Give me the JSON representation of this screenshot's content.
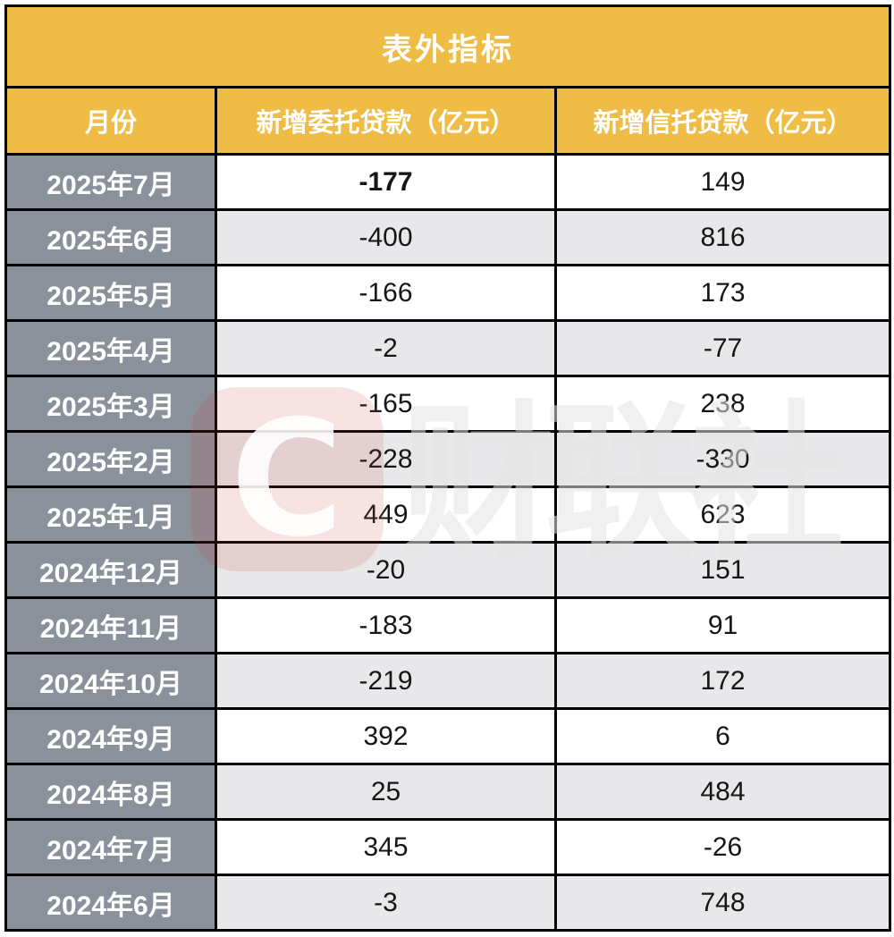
{
  "table": {
    "title": "表外指标",
    "columns": [
      "月份",
      "新增委托贷款（亿元）",
      "新增信托贷款（亿元）"
    ],
    "rows": [
      {
        "month": "2025年7月",
        "entrusted": "-177",
        "trust": "149",
        "bold": true
      },
      {
        "month": "2025年6月",
        "entrusted": "-400",
        "trust": "816",
        "bold": false
      },
      {
        "month": "2025年5月",
        "entrusted": "-166",
        "trust": "173",
        "bold": false
      },
      {
        "month": "2025年4月",
        "entrusted": "-2",
        "trust": "-77",
        "bold": false
      },
      {
        "month": "2025年3月",
        "entrusted": "-165",
        "trust": "238",
        "bold": false
      },
      {
        "month": "2025年2月",
        "entrusted": "-228",
        "trust": "-330",
        "bold": false
      },
      {
        "month": "2025年1月",
        "entrusted": "449",
        "trust": "623",
        "bold": false
      },
      {
        "month": "2024年12月",
        "entrusted": "-20",
        "trust": "151",
        "bold": false
      },
      {
        "month": "2024年11月",
        "entrusted": "-183",
        "trust": "91",
        "bold": false
      },
      {
        "month": "2024年10月",
        "entrusted": "-219",
        "trust": "172",
        "bold": false
      },
      {
        "month": "2024年9月",
        "entrusted": "392",
        "trust": "6",
        "bold": false
      },
      {
        "month": "2024年8月",
        "entrusted": "25",
        "trust": "484",
        "bold": false
      },
      {
        "month": "2024年7月",
        "entrusted": "345",
        "trust": "-26",
        "bold": false
      },
      {
        "month": "2024年6月",
        "entrusted": "-3",
        "trust": "748",
        "bold": false
      }
    ],
    "colors": {
      "header_bg": "#EFBC45",
      "header_text": "#FFFFFF",
      "month_col_bg": "#8A919B",
      "row_alt_bg": "#E8E8EA",
      "row_bg": "#FFFFFF",
      "grid_line": "#000000",
      "value_text": "#161616"
    }
  },
  "watermark": {
    "logo_letter": "C",
    "text": "财联社",
    "logo_color": "#D34040",
    "text_color": "#E4E4E4"
  },
  "chart_data": {
    "type": "table",
    "title": "表外指标",
    "columns": [
      "月份",
      "新增委托贷款（亿元）",
      "新增信托贷款（亿元）"
    ],
    "categories": [
      "2025年7月",
      "2025年6月",
      "2025年5月",
      "2025年4月",
      "2025年3月",
      "2025年2月",
      "2025年1月",
      "2024年12月",
      "2024年11月",
      "2024年10月",
      "2024年9月",
      "2024年8月",
      "2024年7月",
      "2024年6月"
    ],
    "series": [
      {
        "name": "新增委托贷款（亿元）",
        "values": [
          -177,
          -400,
          -166,
          -2,
          -165,
          -228,
          449,
          -20,
          -183,
          -219,
          392,
          25,
          345,
          -3
        ]
      },
      {
        "name": "新增信托贷款（亿元）",
        "values": [
          149,
          816,
          173,
          -77,
          238,
          -330,
          623,
          151,
          91,
          172,
          6,
          484,
          -26,
          748
        ]
      }
    ]
  }
}
